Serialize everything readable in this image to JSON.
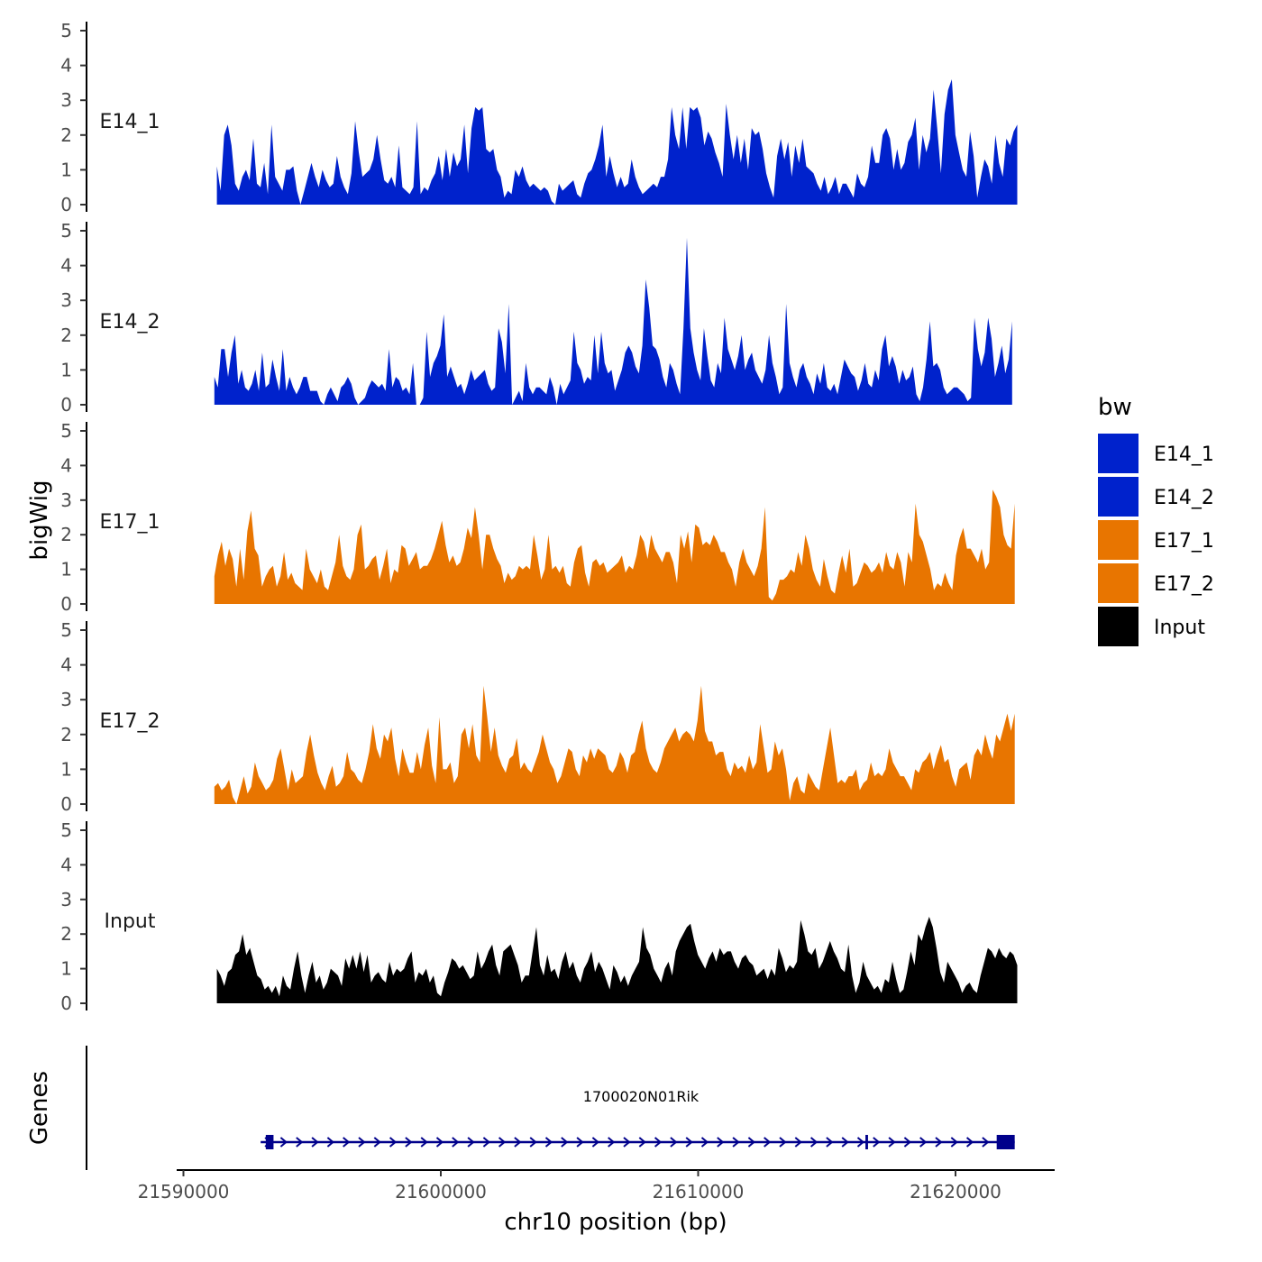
{
  "chart_data": {
    "type": "area",
    "ylabel": "bigWig",
    "xlabel": "chr10 position (bp)",
    "genes_label": "Genes",
    "ylim": [
      0,
      5
    ],
    "yticks": [
      0,
      1,
      2,
      3,
      4,
      5
    ],
    "xlim": [
      21589200,
      21623200
    ],
    "xticks": [
      21590000,
      21600000,
      21610000,
      21620000
    ],
    "xtick_labels": [
      "21590000",
      "21600000",
      "21610000",
      "21620000"
    ],
    "legend": {
      "title": "bw",
      "position": "right",
      "entries": [
        {
          "label": "E14_1",
          "color": "#0022cc"
        },
        {
          "label": "E14_2",
          "color": "#0022cc"
        },
        {
          "label": "E17_1",
          "color": "#e87500"
        },
        {
          "label": "E17_2",
          "color": "#e87500"
        },
        {
          "label": "Input",
          "color": "#000000"
        }
      ]
    },
    "series": [
      {
        "name": "E14_1",
        "color": "#0022cc",
        "x_start": 21591300,
        "x_end": 21622400,
        "values": [
          1.1,
          0.4,
          2.0,
          2.3,
          1.7,
          0.6,
          0.4,
          0.8,
          1.0,
          0.7,
          1.9,
          0.6,
          0.5,
          1.2,
          0.3,
          2.3,
          0.8,
          0.6,
          0.4,
          1.0,
          1.0,
          1.1,
          0.4,
          0.0,
          0.4,
          0.8,
          1.2,
          0.8,
          0.5,
          1.0,
          0.7,
          0.5,
          0.6,
          1.4,
          0.8,
          0.5,
          0.3,
          0.9,
          2.4,
          1.5,
          0.8,
          0.9,
          1.0,
          1.3,
          2.0,
          1.3,
          0.7,
          0.6,
          0.8,
          0.5,
          1.7,
          0.5,
          0.4,
          0.3,
          0.5,
          2.4,
          0.3,
          0.5,
          0.4,
          0.7,
          0.9,
          1.4,
          0.7,
          1.6,
          0.8,
          1.5,
          1.1,
          1.3,
          2.3,
          0.9,
          2.2,
          2.8,
          2.7,
          2.8,
          1.6,
          1.5,
          1.6,
          1.0,
          0.8,
          0.2,
          0.4,
          0.3,
          1.0,
          0.8,
          1.1,
          0.7,
          0.5,
          0.6,
          0.5,
          0.4,
          0.5,
          0.4,
          0.1,
          0.0,
          0.6,
          0.4,
          0.5,
          0.6,
          0.7,
          0.3,
          0.2,
          0.6,
          0.9,
          1.0,
          1.3,
          1.7,
          2.3,
          0.8,
          1.4,
          0.9,
          0.5,
          0.8,
          0.5,
          0.6,
          1.3,
          0.8,
          0.5,
          0.3,
          0.4,
          0.5,
          0.6,
          0.5,
          0.8,
          0.8,
          1.3,
          2.8,
          2.0,
          1.6,
          2.8,
          1.6,
          2.8,
          2.7,
          2.8,
          2.5,
          1.7,
          2.1,
          1.9,
          1.5,
          1.2,
          0.8,
          2.9,
          2.0,
          1.3,
          2.0,
          1.2,
          1.9,
          1.0,
          2.2,
          2.0,
          2.1,
          1.6,
          0.9,
          0.5,
          0.2,
          1.4,
          1.9,
          1.3,
          1.8,
          0.8,
          1.7,
          1.2,
          1.9,
          1.1,
          1.0,
          0.9,
          0.6,
          0.4,
          0.8,
          0.3,
          0.5,
          0.8,
          0.3,
          0.6,
          0.6,
          0.4,
          0.2,
          0.9,
          0.6,
          0.5,
          0.8,
          1.7,
          1.2,
          1.2,
          2.0,
          2.2,
          1.9,
          1.0,
          1.6,
          1.0,
          1.2,
          1.8,
          2.0,
          2.5,
          1.0,
          2.0,
          1.5,
          1.9,
          3.3,
          2.2,
          0.9,
          2.6,
          3.3,
          3.6,
          2.0,
          1.5,
          1.0,
          0.8,
          2.1,
          1.4,
          0.2,
          0.8,
          1.3,
          1.1,
          0.6,
          2.0,
          1.2,
          0.8,
          1.9,
          1.7,
          2.1,
          2.3
        ]
      },
      {
        "name": "E14_2",
        "color": "#0022cc",
        "x_start": 21591200,
        "x_end": 21622200,
        "values": [
          0.8,
          0.5,
          1.6,
          1.6,
          0.8,
          1.5,
          2.0,
          0.6,
          1.0,
          0.5,
          0.4,
          0.6,
          1.0,
          0.4,
          1.5,
          0.5,
          0.6,
          1.3,
          0.8,
          0.4,
          1.6,
          0.4,
          0.8,
          0.5,
          0.3,
          0.5,
          0.8,
          0.8,
          0.4,
          0.4,
          0.4,
          0.1,
          0.0,
          0.3,
          0.5,
          0.3,
          0.1,
          0.5,
          0.6,
          0.8,
          0.6,
          0.2,
          0.0,
          0.1,
          0.2,
          0.5,
          0.7,
          0.6,
          0.5,
          0.6,
          0.4,
          1.6,
          0.5,
          0.8,
          0.7,
          0.4,
          0.5,
          0.3,
          1.2,
          0.0,
          0.0,
          0.2,
          2.1,
          0.8,
          1.2,
          1.4,
          1.7,
          2.6,
          0.8,
          1.1,
          0.8,
          0.5,
          0.6,
          0.3,
          0.6,
          1.0,
          0.7,
          0.8,
          0.9,
          1.0,
          0.6,
          0.4,
          0.5,
          2.2,
          1.8,
          0.9,
          2.9,
          0.0,
          0.2,
          0.4,
          0.1,
          1.2,
          0.5,
          0.3,
          0.5,
          0.5,
          0.4,
          0.3,
          0.8,
          0.5,
          0.0,
          0.6,
          0.3,
          0.5,
          0.7,
          2.1,
          1.2,
          1.0,
          0.6,
          0.8,
          0.7,
          2.0,
          0.9,
          2.1,
          1.2,
          0.9,
          1.0,
          0.4,
          0.7,
          1.0,
          1.5,
          1.7,
          1.5,
          1.1,
          0.9,
          1.7,
          3.6,
          2.8,
          1.7,
          1.6,
          1.3,
          0.8,
          0.5,
          1.2,
          1.0,
          0.6,
          0.3,
          2.2,
          4.8,
          2.2,
          1.5,
          1.0,
          0.7,
          2.2,
          1.4,
          0.7,
          0.5,
          1.2,
          0.9,
          2.5,
          1.6,
          1.3,
          1.0,
          1.4,
          2.0,
          1.0,
          1.3,
          1.5,
          1.0,
          0.8,
          0.6,
          1.0,
          2.0,
          1.2,
          0.8,
          0.3,
          0.5,
          2.9,
          1.2,
          0.8,
          0.5,
          1.0,
          1.2,
          0.8,
          0.6,
          0.3,
          0.9,
          0.6,
          1.2,
          0.5,
          0.4,
          0.6,
          0.3,
          0.8,
          1.3,
          1.1,
          0.9,
          0.8,
          0.4,
          0.7,
          1.2,
          0.6,
          0.5,
          1.0,
          0.7,
          1.6,
          2.0,
          1.1,
          1.4,
          1.1,
          0.6,
          1.0,
          0.7,
          0.8,
          1.1,
          0.3,
          0.1,
          0.5,
          1.3,
          2.4,
          1.1,
          1.2,
          1.0,
          0.5,
          0.3,
          0.4,
          0.5,
          0.5,
          0.4,
          0.3,
          0.1,
          0.2,
          2.5,
          1.6,
          1.1,
          1.5,
          2.5,
          1.9,
          0.8,
          1.2,
          1.7,
          0.9,
          1.3,
          2.4
        ]
      },
      {
        "name": "E17_1",
        "color": "#e87500",
        "x_start": 21591200,
        "x_end": 21622300,
        "values": [
          0.8,
          1.4,
          1.8,
          1.1,
          1.6,
          1.3,
          0.5,
          1.6,
          0.7,
          2.1,
          2.7,
          1.6,
          1.4,
          0.5,
          0.8,
          1.0,
          1.1,
          0.5,
          0.8,
          1.5,
          0.7,
          0.9,
          0.6,
          0.5,
          0.4,
          1.6,
          1.0,
          0.8,
          0.6,
          1.0,
          0.5,
          0.4,
          0.8,
          1.2,
          2.0,
          1.1,
          0.8,
          0.7,
          1.0,
          2.0,
          2.3,
          1.0,
          1.1,
          1.3,
          1.4,
          0.7,
          1.1,
          1.6,
          0.6,
          1.0,
          0.9,
          1.7,
          1.6,
          1.1,
          1.3,
          1.5,
          1.0,
          1.1,
          1.1,
          1.3,
          1.6,
          2.0,
          2.4,
          1.7,
          1.2,
          1.4,
          1.1,
          1.2,
          1.6,
          2.2,
          1.9,
          2.8,
          2.0,
          1.0,
          2.0,
          2.0,
          1.6,
          1.3,
          1.1,
          0.6,
          0.9,
          0.7,
          0.8,
          1.1,
          1.0,
          1.1,
          1.0,
          2.0,
          1.4,
          0.7,
          1.0,
          2.0,
          1.0,
          1.1,
          0.9,
          1.1,
          0.6,
          0.5,
          1.2,
          1.6,
          1.7,
          0.9,
          0.5,
          1.2,
          1.3,
          1.1,
          1.2,
          0.9,
          1.0,
          1.1,
          1.2,
          1.4,
          0.9,
          1.1,
          1.0,
          1.4,
          2.0,
          1.8,
          1.3,
          2.0,
          1.6,
          1.4,
          1.2,
          1.5,
          1.5,
          1.2,
          0.6,
          2.0,
          1.6,
          2.1,
          1.2,
          2.3,
          2.2,
          1.7,
          1.8,
          1.7,
          2.0,
          1.8,
          1.5,
          1.5,
          1.2,
          1.0,
          0.5,
          1.2,
          1.6,
          1.2,
          1.0,
          0.8,
          1.1,
          1.6,
          2.8,
          0.2,
          0.1,
          0.3,
          0.7,
          0.7,
          0.8,
          1.0,
          0.9,
          1.5,
          1.1,
          2.0,
          1.6,
          1.0,
          0.7,
          0.5,
          1.3,
          0.8,
          0.4,
          0.3,
          0.9,
          1.4,
          0.9,
          1.6,
          0.5,
          0.6,
          0.9,
          1.2,
          1.1,
          0.9,
          1.0,
          1.2,
          0.9,
          1.5,
          1.1,
          1.0,
          1.5,
          1.2,
          0.5,
          1.5,
          1.2,
          2.9,
          2.0,
          1.8,
          1.4,
          1.0,
          0.4,
          0.6,
          0.5,
          0.9,
          0.6,
          0.4,
          1.4,
          1.9,
          2.2,
          1.6,
          1.6,
          1.4,
          1.2,
          1.6,
          1.0,
          1.2,
          3.3,
          3.1,
          2.8,
          2.0,
          1.7,
          1.6,
          2.9
        ]
      },
      {
        "name": "E17_2",
        "color": "#e87500",
        "x_start": 21591200,
        "x_end": 21622300,
        "values": [
          0.5,
          0.6,
          0.4,
          0.5,
          0.7,
          0.2,
          0.0,
          0.4,
          0.8,
          0.3,
          0.5,
          1.2,
          0.8,
          0.6,
          0.4,
          0.5,
          0.7,
          1.3,
          1.6,
          1.0,
          0.4,
          1.0,
          0.6,
          0.7,
          0.8,
          1.5,
          2.0,
          1.4,
          0.9,
          0.6,
          0.4,
          0.8,
          1.1,
          0.5,
          0.6,
          0.8,
          1.5,
          1.0,
          0.9,
          0.7,
          0.6,
          1.0,
          1.5,
          2.3,
          1.6,
          1.3,
          2.0,
          1.8,
          2.2,
          1.3,
          0.8,
          1.6,
          1.2,
          0.9,
          0.9,
          1.5,
          1.0,
          1.7,
          2.2,
          1.1,
          0.6,
          2.5,
          1.0,
          1.0,
          1.2,
          0.6,
          0.8,
          2.0,
          2.2,
          1.6,
          2.3,
          1.4,
          1.2,
          3.4,
          2.5,
          1.5,
          2.2,
          1.4,
          1.1,
          0.9,
          1.3,
          1.4,
          1.9,
          1.0,
          1.2,
          1.0,
          0.9,
          1.2,
          1.5,
          2.0,
          1.6,
          1.2,
          1.0,
          0.6,
          0.8,
          1.2,
          1.6,
          1.5,
          1.0,
          0.8,
          1.4,
          1.2,
          1.6,
          1.3,
          1.6,
          1.5,
          1.4,
          1.0,
          0.9,
          1.1,
          1.5,
          1.3,
          0.9,
          1.4,
          1.5,
          2.0,
          2.4,
          1.6,
          1.2,
          1.0,
          0.9,
          1.2,
          1.6,
          1.8,
          2.0,
          2.2,
          1.8,
          2.0,
          2.1,
          2.0,
          1.8,
          2.4,
          3.4,
          2.1,
          1.8,
          1.8,
          1.4,
          1.5,
          1.5,
          1.0,
          0.8,
          1.2,
          1.0,
          1.1,
          0.9,
          1.4,
          1.0,
          1.2,
          2.3,
          1.6,
          0.9,
          1.0,
          1.8,
          1.4,
          1.6,
          1.0,
          0.1,
          0.6,
          0.8,
          0.4,
          0.3,
          0.9,
          0.7,
          0.5,
          0.4,
          1.0,
          1.6,
          2.2,
          1.4,
          0.6,
          0.7,
          0.6,
          0.8,
          0.8,
          1.0,
          0.4,
          0.6,
          0.7,
          1.2,
          0.8,
          0.9,
          0.8,
          1.0,
          1.6,
          1.2,
          1.0,
          0.8,
          0.8,
          0.6,
          0.4,
          1.0,
          0.9,
          1.2,
          1.3,
          1.5,
          1.0,
          1.4,
          1.7,
          1.2,
          1.3,
          0.8,
          0.5,
          1.0,
          1.1,
          1.2,
          0.7,
          1.4,
          1.6,
          1.4,
          2.0,
          1.6,
          1.3,
          2.0,
          1.8,
          2.2,
          2.6,
          2.1,
          2.6
        ]
      },
      {
        "name": "Input",
        "color": "#000000",
        "x_start": 21591300,
        "x_end": 21622400,
        "values": [
          1.0,
          0.8,
          0.5,
          0.9,
          1.0,
          1.4,
          1.5,
          2.0,
          1.4,
          1.6,
          1.2,
          0.8,
          0.7,
          0.4,
          0.5,
          0.3,
          0.5,
          0.2,
          0.8,
          0.5,
          0.4,
          1.0,
          1.5,
          0.8,
          0.3,
          0.8,
          1.2,
          0.6,
          0.8,
          0.4,
          0.6,
          1.0,
          0.9,
          0.8,
          0.5,
          1.3,
          1.0,
          1.4,
          1.0,
          1.5,
          0.9,
          1.4,
          0.6,
          0.8,
          0.9,
          0.7,
          0.6,
          1.2,
          0.8,
          1.0,
          0.9,
          1.0,
          1.3,
          1.5,
          0.6,
          0.9,
          0.8,
          1.0,
          0.6,
          0.8,
          0.3,
          0.2,
          0.6,
          0.9,
          1.3,
          1.2,
          1.0,
          1.1,
          0.9,
          0.7,
          0.8,
          1.5,
          1.0,
          1.2,
          1.5,
          1.7,
          1.1,
          0.8,
          1.5,
          1.6,
          1.7,
          1.4,
          1.1,
          0.6,
          0.8,
          0.8,
          1.5,
          2.2,
          1.1,
          0.8,
          1.4,
          0.9,
          1.0,
          0.7,
          1.2,
          1.5,
          1.0,
          1.2,
          0.8,
          0.6,
          1.0,
          1.2,
          1.5,
          0.9,
          1.2,
          1.0,
          0.7,
          0.4,
          1.1,
          0.9,
          0.6,
          0.8,
          0.5,
          0.8,
          1.0,
          1.2,
          2.2,
          1.6,
          1.4,
          1.0,
          0.8,
          0.6,
          1.0,
          1.2,
          0.8,
          1.5,
          1.8,
          2.0,
          2.2,
          2.3,
          1.8,
          1.4,
          1.2,
          1.0,
          1.3,
          1.5,
          1.2,
          1.6,
          1.4,
          1.5,
          1.5,
          1.2,
          1.0,
          1.3,
          1.4,
          1.2,
          1.1,
          0.8,
          0.9,
          1.0,
          0.7,
          1.0,
          0.8,
          1.6,
          1.3,
          0.9,
          1.1,
          1.0,
          1.2,
          2.4,
          2.0,
          1.5,
          1.4,
          1.6,
          1.0,
          1.2,
          1.5,
          1.8,
          1.5,
          1.3,
          1.0,
          0.9,
          1.7,
          0.8,
          0.3,
          0.6,
          1.2,
          0.8,
          0.6,
          0.4,
          0.5,
          0.3,
          0.7,
          0.6,
          1.2,
          0.7,
          0.3,
          0.4,
          0.9,
          1.5,
          1.1,
          2.0,
          1.8,
          2.2,
          2.5,
          2.2,
          1.6,
          0.9,
          0.6,
          1.2,
          1.0,
          0.8,
          0.6,
          0.3,
          0.5,
          0.6,
          0.4,
          0.3,
          0.8,
          1.2,
          1.6,
          1.5,
          1.3,
          1.6,
          1.4,
          1.3,
          1.5,
          1.4,
          1.1
        ]
      }
    ],
    "genes": [
      {
        "name": "1700020N01Rik",
        "start": 21593000,
        "end": 21622300,
        "strand": "+",
        "exons": [
          [
            21593200,
            21593500
          ],
          [
            21616500,
            21616600
          ],
          [
            21621600,
            21622300
          ]
        ]
      }
    ]
  }
}
